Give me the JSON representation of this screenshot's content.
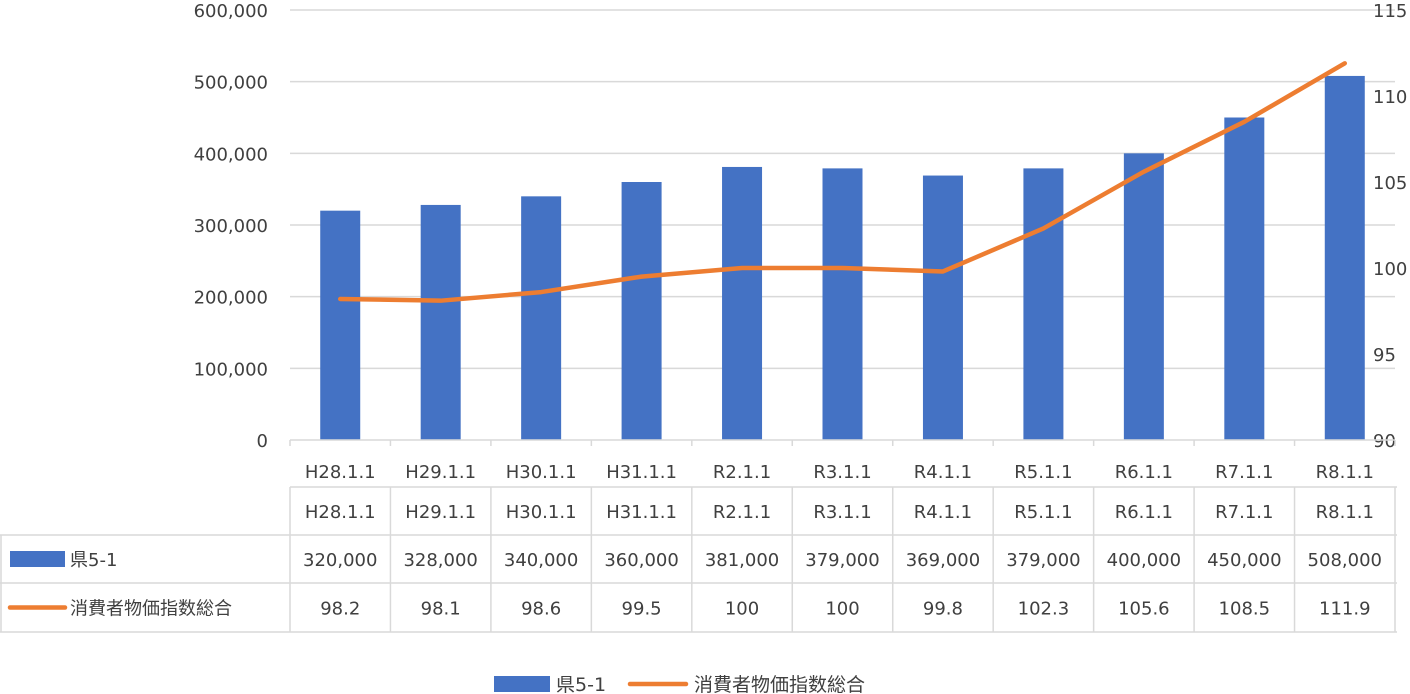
{
  "chart_data": {
    "type": "bar",
    "categories": [
      "H28.1.1",
      "H29.1.1",
      "H30.1.1",
      "H31.1.1",
      "R2.1.1",
      "R3.1.1",
      "R4.1.1",
      "R5.1.1",
      "R6.1.1",
      "R7.1.1",
      "R8.1.1"
    ],
    "series": [
      {
        "name": "県5-1",
        "type": "bar",
        "axis": "left",
        "color": "#4472C4",
        "values": [
          320000,
          328000,
          340000,
          360000,
          381000,
          379000,
          369000,
          379000,
          400000,
          450000,
          508000
        ],
        "labels": [
          "320,000",
          "328,000",
          "340,000",
          "360,000",
          "381,000",
          "379,000",
          "369,000",
          "379,000",
          "400,000",
          "450,000",
          "508,000"
        ]
      },
      {
        "name": "消費者物価指数総合",
        "type": "line",
        "axis": "right",
        "color": "#ED7D31",
        "values": [
          98.2,
          98.1,
          98.6,
          99.5,
          100,
          100,
          99.8,
          102.3,
          105.6,
          108.5,
          111.9
        ],
        "labels": [
          "98.2",
          "98.1",
          "98.6",
          "99.5",
          "100",
          "100",
          "99.8",
          "102.3",
          "105.6",
          "108.5",
          "111.9"
        ]
      }
    ],
    "y_left": {
      "lim": [
        0,
        600000
      ],
      "ticks": [
        0,
        100000,
        200000,
        300000,
        400000,
        500000,
        600000
      ],
      "tick_labels": [
        "0",
        "100,000",
        "200,000",
        "300,000",
        "400,000",
        "500,000",
        "600,000"
      ]
    },
    "y_right": {
      "lim": [
        90,
        115
      ],
      "ticks": [
        90,
        95,
        100,
        105,
        110,
        115
      ],
      "tick_labels": [
        "90",
        "95",
        "100",
        "105",
        "110",
        "115"
      ]
    },
    "grid": true,
    "legend_position": "bottom",
    "data_table": true
  }
}
